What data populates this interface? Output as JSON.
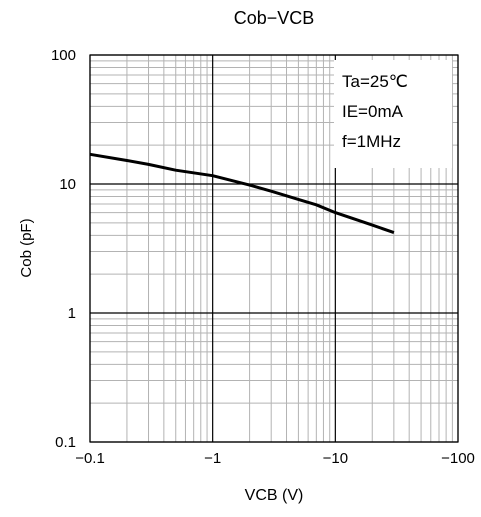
{
  "chart_data": {
    "type": "line",
    "title": "Cob−VCB",
    "xlabel": "VCB (V)",
    "ylabel": "Cob (pF)",
    "x_scale": "log",
    "y_scale": "log",
    "x_direction": "negative",
    "xlim": [
      -0.1,
      -100
    ],
    "ylim": [
      0.1,
      100
    ],
    "x_ticks": [
      {
        "value": 0.1,
        "label": "−0.1"
      },
      {
        "value": 1,
        "label": "−1"
      },
      {
        "value": 10,
        "label": "−10"
      },
      {
        "value": 100,
        "label": "−100"
      }
    ],
    "y_ticks": [
      {
        "value": 0.1,
        "label": "0.1"
      },
      {
        "value": 1,
        "label": "1"
      },
      {
        "value": 10,
        "label": "10"
      },
      {
        "value": 100,
        "label": "100"
      }
    ],
    "grid": true,
    "annotations": [
      "Ta=25℃",
      "IE=0mA",
      "f=1MHz"
    ],
    "annotation_position": "top-right",
    "series": [
      {
        "x": [
          -0.1,
          -0.2,
          -0.3,
          -0.5,
          -1,
          -2,
          -3,
          -5,
          -7,
          -10,
          -20,
          -30
        ],
        "y": [
          17,
          15.2,
          14.2,
          12.8,
          11.6,
          9.8,
          8.8,
          7.6,
          6.9,
          6.0,
          4.8,
          4.2
        ]
      }
    ]
  }
}
